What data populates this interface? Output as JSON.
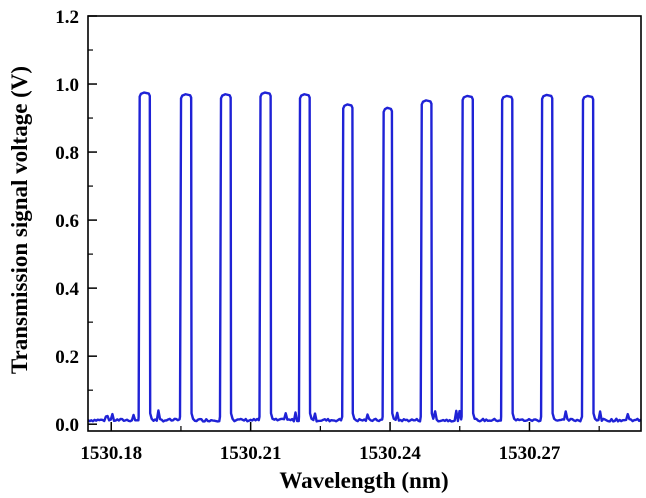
{
  "chart_data": {
    "type": "line",
    "title": "",
    "xlabel": "Wavelength (nm)",
    "ylabel": "Transmission signal voltage (V)",
    "xlim": [
      1530.175,
      1530.294
    ],
    "ylim": [
      -0.02,
      1.2
    ],
    "x_ticks": [
      1530.18,
      1530.21,
      1530.24,
      1530.27
    ],
    "x_tick_labels": [
      "1530.18",
      "1530.21",
      "1530.24",
      "1530.27"
    ],
    "y_ticks": [
      0.0,
      0.2,
      0.4,
      0.6,
      0.8,
      1.0,
      1.2
    ],
    "y_tick_labels": [
      "0.0",
      "0.2",
      "0.4",
      "0.6",
      "0.8",
      "1.0",
      "1.2"
    ],
    "grid": false,
    "legend": "none",
    "series": [
      {
        "color": "#1f22d6",
        "baseline": 0.012,
        "pulses": [
          {
            "start": 1530.1859,
            "end": 1530.1883,
            "peak": 0.975
          },
          {
            "start": 1530.1948,
            "end": 1530.1972,
            "peak": 0.97
          },
          {
            "start": 1530.2034,
            "end": 1530.2057,
            "peak": 0.97
          },
          {
            "start": 1530.2119,
            "end": 1530.2143,
            "peak": 0.975
          },
          {
            "start": 1530.2204,
            "end": 1530.2227,
            "peak": 0.97
          },
          {
            "start": 1530.2297,
            "end": 1530.2319,
            "peak": 0.94
          },
          {
            "start": 1530.2384,
            "end": 1530.2404,
            "peak": 0.93
          },
          {
            "start": 1530.2466,
            "end": 1530.2489,
            "peak": 0.952
          },
          {
            "start": 1530.2554,
            "end": 1530.2578,
            "peak": 0.965
          },
          {
            "start": 1530.2639,
            "end": 1530.2663,
            "peak": 0.965
          },
          {
            "start": 1530.2725,
            "end": 1530.2749,
            "peak": 0.968
          },
          {
            "start": 1530.2813,
            "end": 1530.2837,
            "peak": 0.965
          }
        ]
      }
    ]
  }
}
